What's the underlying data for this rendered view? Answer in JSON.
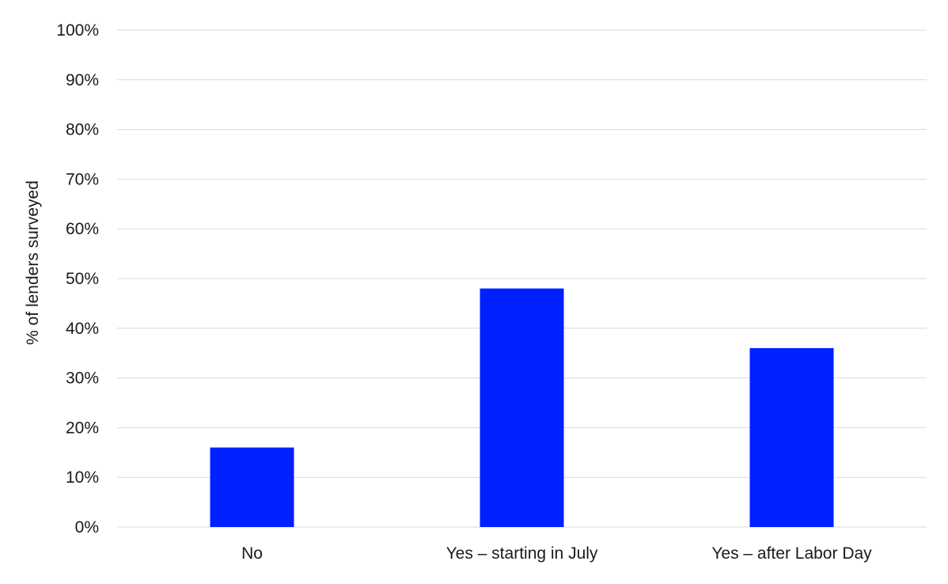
{
  "chart_data": {
    "type": "bar",
    "title": "",
    "xlabel": "",
    "ylabel": "% of lenders surveyed",
    "categories": [
      "No",
      "Yes – starting in July",
      "Yes – after Labor Day"
    ],
    "values": [
      16,
      48,
      36
    ],
    "ylim": [
      0,
      100
    ],
    "y_ticks": [
      0,
      10,
      20,
      30,
      40,
      50,
      60,
      70,
      80,
      90,
      100
    ],
    "y_tick_suffix": "%",
    "grid": true,
    "legend": "none",
    "bar_color": "#0020ff",
    "grid_color": "#d9d9d9",
    "text_color": "#1a1a1a"
  }
}
